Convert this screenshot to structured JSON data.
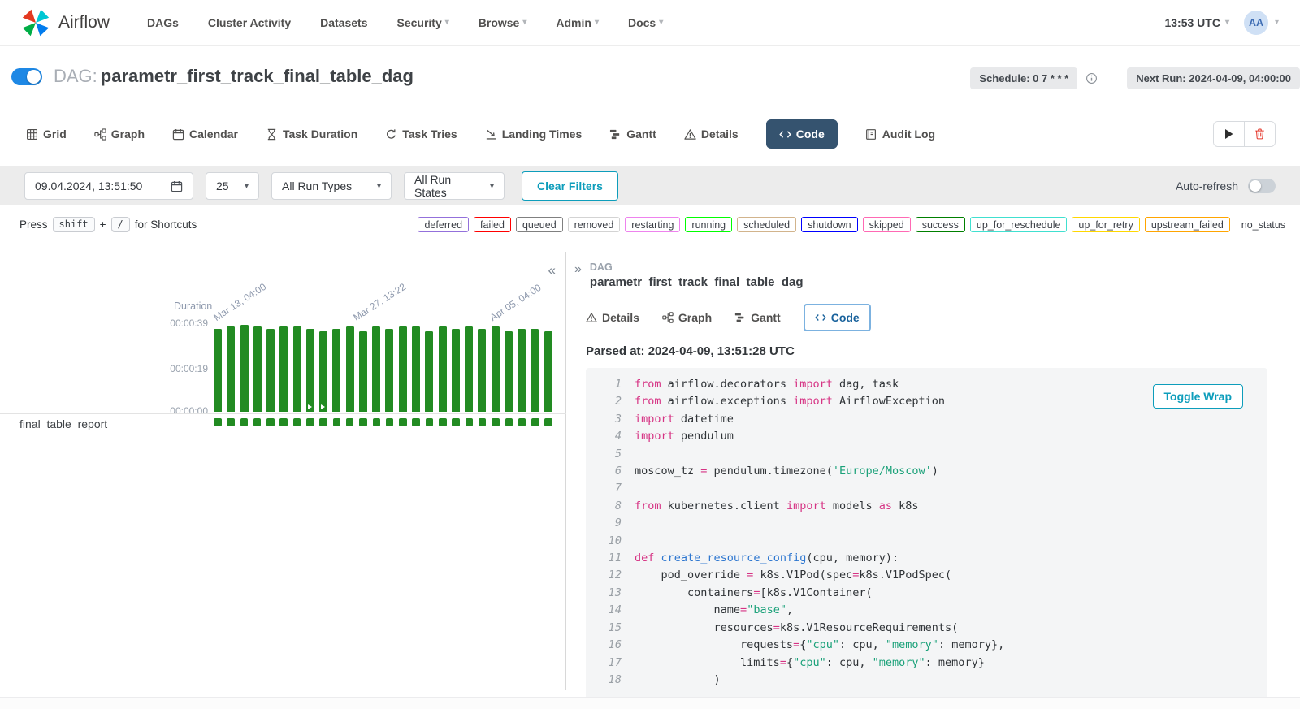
{
  "colors": {
    "accent_teal": "#0d9dbb",
    "active_tab_bg": "#35536f",
    "success_green": "#228b22",
    "toggle_blue": "#1e88e5",
    "link_blue": "#19629c",
    "avatar_bg": "#cfe0f5",
    "avatar_text": "#3d6cb3",
    "code_keyword": "#d63384",
    "code_string": "#1aa179",
    "code_function": "#2e77d0"
  },
  "navbar": {
    "brand": "Airflow",
    "items": [
      {
        "label": "DAGs",
        "caret": false
      },
      {
        "label": "Cluster Activity",
        "caret": false
      },
      {
        "label": "Datasets",
        "caret": false
      },
      {
        "label": "Security",
        "caret": true
      },
      {
        "label": "Browse",
        "caret": true
      },
      {
        "label": "Admin",
        "caret": true
      },
      {
        "label": "Docs",
        "caret": true
      }
    ],
    "clock": "13:53 UTC",
    "avatar": "AA"
  },
  "dag_header": {
    "prefix": "DAG:",
    "title": "parametr_first_track_final_table_dag",
    "schedule_badge": "Schedule: 0 7 * * *",
    "next_run_badge": "Next Run: 2024-04-09, 04:00:00"
  },
  "tabs": [
    {
      "label": "Grid",
      "icon": "grid-icon",
      "active": false
    },
    {
      "label": "Graph",
      "icon": "graph-icon",
      "active": false
    },
    {
      "label": "Calendar",
      "icon": "calendar-icon",
      "active": false
    },
    {
      "label": "Task Duration",
      "icon": "hourglass-icon",
      "active": false
    },
    {
      "label": "Task Tries",
      "icon": "retry-icon",
      "active": false
    },
    {
      "label": "Landing Times",
      "icon": "landing-icon",
      "active": false
    },
    {
      "label": "Gantt",
      "icon": "gantt-icon",
      "active": false
    },
    {
      "label": "Details",
      "icon": "warning-icon",
      "active": false
    },
    {
      "label": "Code",
      "icon": "code-icon",
      "active": true
    },
    {
      "label": "Audit Log",
      "icon": "book-icon",
      "active": false
    }
  ],
  "filters": {
    "date_value": "09.04.2024, 13:51:50",
    "page_size": "25",
    "run_types": "All Run Types",
    "run_states": "All Run States",
    "clear_button": "Clear Filters",
    "auto_refresh_label": "Auto-refresh"
  },
  "shortcuts": {
    "prefix": "Press",
    "key1": "shift",
    "plus": "+",
    "key2": "/",
    "suffix": "for Shortcuts"
  },
  "state_badges": [
    {
      "label": "deferred",
      "color": "mediumpurple"
    },
    {
      "label": "failed",
      "color": "red"
    },
    {
      "label": "queued",
      "color": "gray"
    },
    {
      "label": "removed",
      "color": "lightgrey"
    },
    {
      "label": "restarting",
      "color": "violet"
    },
    {
      "label": "running",
      "color": "lime"
    },
    {
      "label": "scheduled",
      "color": "tan"
    },
    {
      "label": "shutdown",
      "color": "blue"
    },
    {
      "label": "skipped",
      "color": "hotpink"
    },
    {
      "label": "success",
      "color": "green"
    },
    {
      "label": "up_for_reschedule",
      "color": "turquoise"
    },
    {
      "label": "up_for_retry",
      "color": "gold"
    },
    {
      "label": "upstream_failed",
      "color": "orange"
    },
    {
      "label": "no_status",
      "color": ""
    }
  ],
  "grid_panel": {
    "collapse_glyph": "«",
    "duration_label": "Duration",
    "task_row_label": "final_table_report"
  },
  "chart_data": {
    "type": "bar",
    "title": "Duration",
    "ylabel": "Duration",
    "y_ticks": [
      "00:00:39",
      "00:00:19",
      "00:00:00"
    ],
    "ylim_seconds": [
      0,
      43.6
    ],
    "x_axis_labels": [
      "Mar 13, 04:00",
      "Mar 27, 13:22",
      "Apr 05, 04:00"
    ],
    "task": "final_table_report",
    "values_seconds": [
      37,
      38,
      39,
      38,
      37,
      38,
      38,
      37,
      36,
      37,
      38,
      36,
      38,
      37,
      38,
      38,
      36,
      38,
      37,
      38,
      37,
      38,
      36,
      37,
      37,
      36
    ],
    "marker_indices": [
      7,
      8
    ],
    "bar_color": "#228b22"
  },
  "details_panel": {
    "expand_glyph": "»",
    "breadcrumb": "DAG",
    "title": "parametr_first_track_final_table_dag",
    "tabs": [
      {
        "label": "Details",
        "icon": "warning-icon",
        "active": false
      },
      {
        "label": "Graph",
        "icon": "graph-icon",
        "active": false
      },
      {
        "label": "Gantt",
        "icon": "gantt-icon",
        "active": false
      },
      {
        "label": "Code",
        "icon": "code-icon",
        "active": true
      }
    ],
    "parsed_at": "Parsed at: 2024-04-09, 13:51:28 UTC",
    "toggle_wrap": "Toggle Wrap",
    "code_lines": [
      "from airflow.decorators import dag, task",
      "from airflow.exceptions import AirflowException",
      "import datetime",
      "import pendulum",
      "",
      "moscow_tz = pendulum.timezone('Europe/Moscow')",
      "",
      "from kubernetes.client import models as k8s",
      "",
      "",
      "def create_resource_config(cpu, memory):",
      "    pod_override = k8s.V1Pod(spec=k8s.V1PodSpec(",
      "        containers=[k8s.V1Container(",
      "            name=\"base\",",
      "            resources=k8s.V1ResourceRequirements(",
      "                requests={\"cpu\": cpu, \"memory\": memory},",
      "                limits={\"cpu\": cpu, \"memory\": memory}",
      "            )"
    ]
  }
}
